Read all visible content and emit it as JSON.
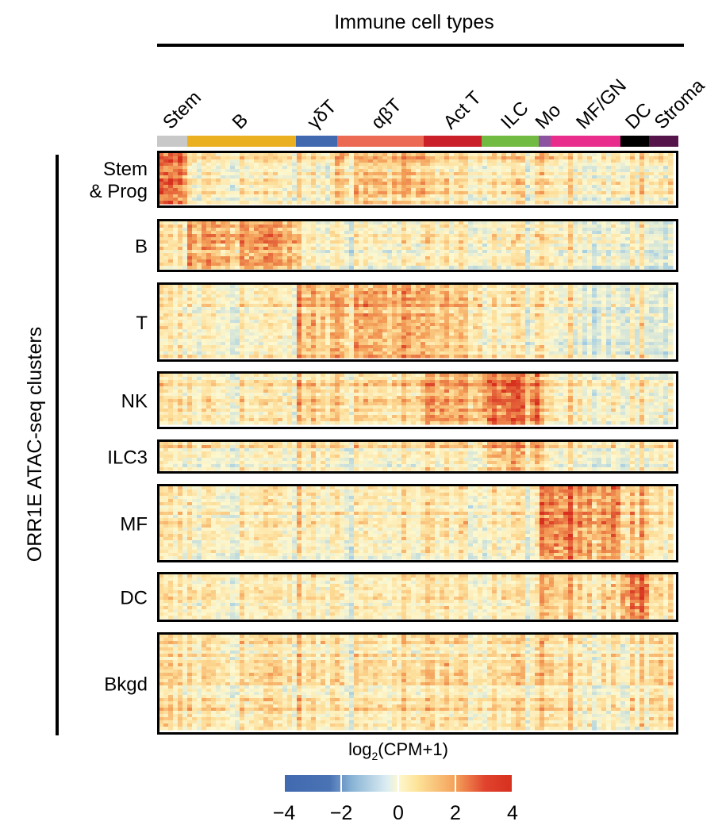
{
  "chart_data": {
    "type": "heatmap",
    "title": "Immune cell types",
    "ylabel": "ORR1E ATAC-seq clusters",
    "column_groups": [
      {
        "name": "Stem",
        "color": "#c8c8c8"
      },
      {
        "name": "B",
        "color": "#ebb022"
      },
      {
        "name": "γδT",
        "color": "#4169b0"
      },
      {
        "name": "αβT",
        "color": "#ec6a53"
      },
      {
        "name": "Act T",
        "color": "#c9202a"
      },
      {
        "name": "ILC",
        "color": "#72bb42"
      },
      {
        "name": "Mo",
        "color": "#8c54a0"
      },
      {
        "name": "MF/GN",
        "color": "#e82d8c"
      },
      {
        "name": "DC",
        "color": "#000000"
      },
      {
        "name": "Stroma",
        "color": "#55154a"
      }
    ],
    "row_clusters": [
      "Stem\n& Prog",
      "B",
      "T",
      "NK",
      "ILC3",
      "MF",
      "DC",
      "Bkgd"
    ],
    "approx_mean_log2_by_cluster_and_group": [
      [
        2.5,
        0.3,
        0.2,
        1.3,
        0.5,
        0.5,
        0.3,
        0.3,
        0.6,
        0.3
      ],
      [
        0.5,
        2.0,
        0.3,
        0.3,
        0.3,
        0.4,
        0.2,
        0.2,
        0.3,
        -0.6
      ],
      [
        0.3,
        0.3,
        1.5,
        1.8,
        1.2,
        0.5,
        0.0,
        0.0,
        0.2,
        -0.6
      ],
      [
        0.3,
        0.3,
        0.8,
        0.8,
        1.5,
        2.5,
        0.3,
        0.3,
        0.3,
        -0.4
      ],
      [
        0.3,
        0.3,
        0.6,
        0.4,
        0.4,
        1.6,
        0.3,
        0.3,
        0.3,
        0.3
      ],
      [
        0.3,
        0.3,
        0.3,
        0.3,
        0.3,
        0.3,
        2.0,
        2.3,
        1.5,
        0.5
      ],
      [
        0.4,
        0.4,
        0.4,
        0.4,
        0.4,
        0.4,
        1.0,
        1.2,
        2.8,
        0.8
      ],
      [
        0.6,
        0.6,
        0.5,
        0.6,
        0.6,
        0.6,
        0.6,
        0.6,
        0.6,
        0.8
      ]
    ],
    "colorbar": {
      "title": "log2(CPM+1)",
      "ticks": [
        "−4",
        "−2",
        "0",
        "2",
        "4"
      ],
      "range": [
        -4,
        4
      ],
      "colors": [
        "#4169b0",
        "#a6cfe4",
        "#fdf8cf",
        "#f4a15a",
        "#d7301f"
      ]
    }
  }
}
